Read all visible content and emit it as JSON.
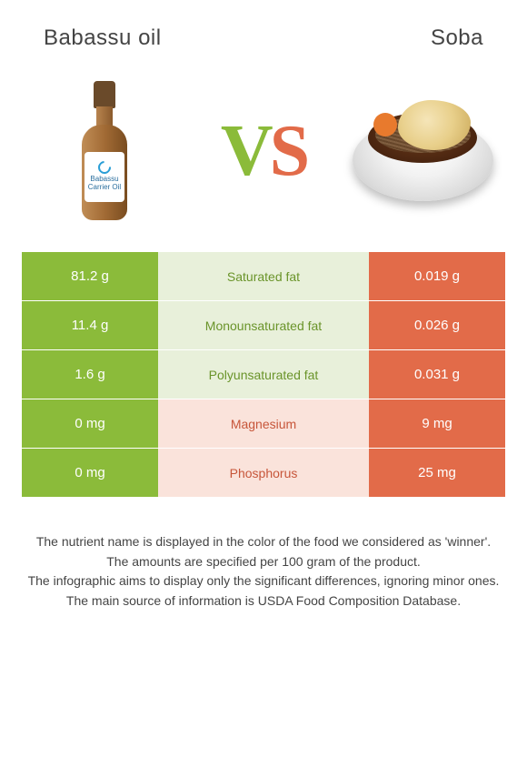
{
  "header": {
    "left_title": "Babassu oil",
    "right_title": "Soba"
  },
  "vs": {
    "v": "V",
    "s": "S"
  },
  "bottle_label": {
    "line1": "Babassu",
    "line2": "Carrier Oil"
  },
  "colors": {
    "green": "#8bbb3a",
    "orange": "#e26b49",
    "mid_light_green": "#e8f0da",
    "mid_light_orange": "#fae3db"
  },
  "table": {
    "rows": [
      {
        "left": "81.2 g",
        "label": "Saturated fat",
        "right": "0.019 g",
        "winner": "left"
      },
      {
        "left": "11.4 g",
        "label": "Monounsaturated fat",
        "right": "0.026 g",
        "winner": "left"
      },
      {
        "left": "1.6 g",
        "label": "Polyunsaturated fat",
        "right": "0.031 g",
        "winner": "left"
      },
      {
        "left": "0 mg",
        "label": "Magnesium",
        "right": "9 mg",
        "winner": "right"
      },
      {
        "left": "0 mg",
        "label": "Phosphorus",
        "right": "25 mg",
        "winner": "right"
      }
    ]
  },
  "footer": {
    "line1": "The nutrient name is displayed in the color of the food we considered as 'winner'.",
    "line2": "The amounts are specified per 100 gram of the product.",
    "line3": "The infographic aims to display only the significant differences, ignoring minor ones.",
    "line4": "The main source of information is USDA Food Composition Database."
  }
}
